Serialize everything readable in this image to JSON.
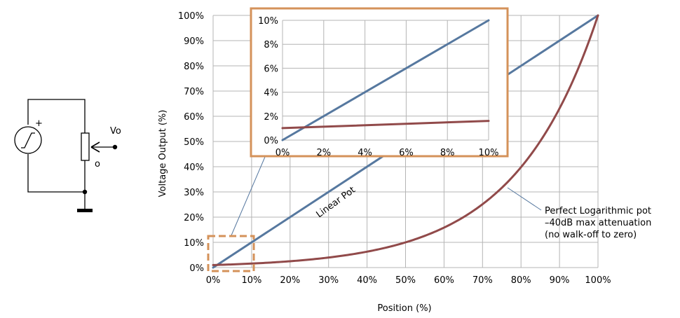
{
  "colors": {
    "linear": "#56789f",
    "log": "#914a4a",
    "inset_border": "#d4925a",
    "grid": "#b4b4b4",
    "leader": "#56789f"
  },
  "schematic": {
    "plus_label": "+",
    "vo_label": "Vo",
    "o_label": "o"
  },
  "chart_data": [
    {
      "id": "main",
      "type": "line",
      "title": "",
      "xlabel": "Position (%)",
      "ylabel": "Voltage Output (%)",
      "xlim": [
        0,
        100
      ],
      "ylim": [
        0,
        100
      ],
      "xticks": [
        0,
        10,
        20,
        30,
        40,
        50,
        60,
        70,
        80,
        90,
        100
      ],
      "yticks": [
        0,
        10,
        20,
        30,
        40,
        50,
        60,
        70,
        80,
        90,
        100
      ],
      "xtick_labels": [
        "0%",
        "10%",
        "20%",
        "30%",
        "40%",
        "50%",
        "60%",
        "70%",
        "80%",
        "90%",
        "100%"
      ],
      "ytick_labels": [
        "0%",
        "10%",
        "20%",
        "30%",
        "40%",
        "50%",
        "60%",
        "70%",
        "80%",
        "90%",
        "100%"
      ],
      "grid": true,
      "series": [
        {
          "key": "linear",
          "x": [
            0,
            100
          ],
          "y": [
            0,
            100
          ]
        },
        {
          "key": "log",
          "x": [
            0,
            10,
            20,
            30,
            40,
            50,
            60,
            70,
            75,
            80,
            85,
            90,
            95,
            100
          ],
          "y": [
            1,
            1.6,
            2.5,
            4.0,
            6.3,
            10,
            15.8,
            25.1,
            31.6,
            39.8,
            50.1,
            63.1,
            79.4,
            100
          ]
        }
      ],
      "annotations": [
        {
          "text": "Linear Pot",
          "x": 35,
          "y": 33
        },
        {
          "text": "Perfect Logarithmic pot",
          "x": 76,
          "y": 34
        },
        {
          "text": "–40dB max attenuation",
          "x": 76,
          "y": 34
        },
        {
          "text": "(no walk-off  to zero)",
          "x": 76,
          "y": 34
        }
      ]
    },
    {
      "id": "inset",
      "type": "line",
      "title": "",
      "xlim": [
        0,
        10
      ],
      "ylim": [
        0,
        10
      ],
      "xticks": [
        0,
        2,
        4,
        6,
        8,
        10
      ],
      "yticks": [
        0,
        2,
        4,
        6,
        8,
        10
      ],
      "xtick_labels": [
        "0%",
        "2%",
        "4%",
        "6%",
        "8%",
        "10%"
      ],
      "ytick_labels": [
        "0%",
        "2%",
        "4%",
        "6%",
        "8%",
        "10%"
      ],
      "grid": true,
      "series": [
        {
          "key": "linear",
          "x": [
            0,
            10
          ],
          "y": [
            0,
            10
          ]
        },
        {
          "key": "log",
          "x": [
            0,
            10
          ],
          "y": [
            1.0,
            1.6
          ]
        }
      ]
    }
  ]
}
